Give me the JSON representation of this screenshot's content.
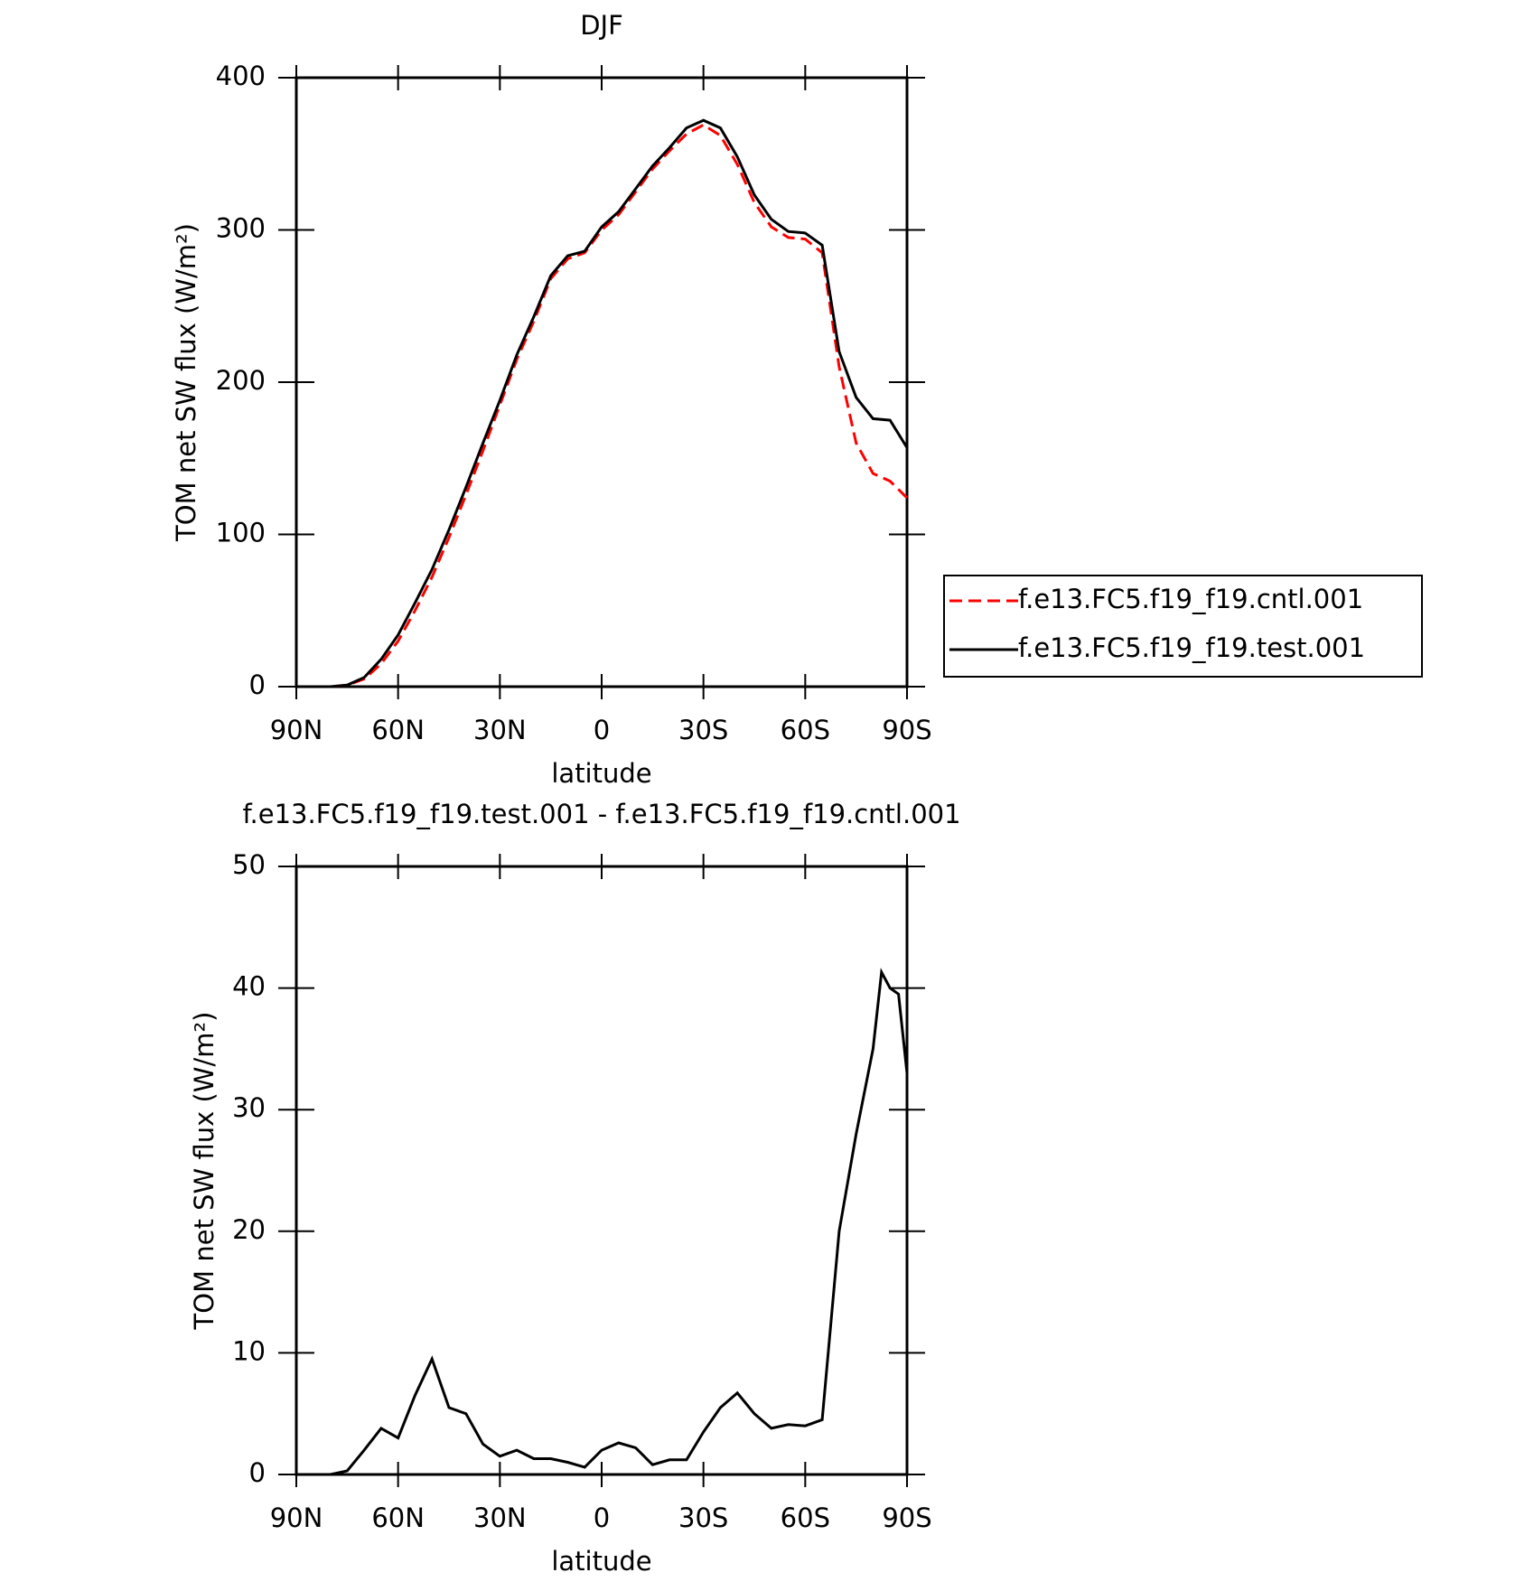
{
  "chart_data": [
    {
      "type": "line",
      "title": "DJF",
      "xlabel": "latitude",
      "ylabel": "TOM net SW flux (W/m²)",
      "x": [
        90,
        85,
        80,
        75,
        70,
        65,
        60,
        55,
        50,
        45,
        40,
        35,
        30,
        25,
        20,
        15,
        10,
        5,
        0,
        -5,
        -10,
        -15,
        -20,
        -25,
        -30,
        -35,
        -40,
        -45,
        -50,
        -55,
        -60,
        -65,
        -70,
        -75,
        -80,
        -85,
        -90
      ],
      "xlim": [
        90,
        -90
      ],
      "xticks": [
        {
          "value": 90,
          "label": "90N"
        },
        {
          "value": 60,
          "label": "60N"
        },
        {
          "value": 30,
          "label": "30N"
        },
        0,
        {
          "value": -30,
          "label": "30S"
        },
        {
          "value": -60,
          "label": "60S"
        },
        {
          "value": -90,
          "label": "90S"
        }
      ],
      "ylim": [
        0,
        400
      ],
      "yticks": [
        0,
        100,
        200,
        300,
        400
      ],
      "series": [
        {
          "name": "f.e13.FC5.f19_f19.cntl.001",
          "color": "#ff0000",
          "dash": true,
          "values": [
            0,
            0,
            0,
            1,
            5,
            15,
            30,
            50,
            72,
            98,
            126,
            155,
            185,
            215,
            240,
            268,
            281,
            285,
            300,
            310,
            325,
            340,
            352,
            363,
            369,
            362,
            343,
            318,
            302,
            295,
            294,
            285,
            210,
            160,
            140,
            135,
            124
          ]
        },
        {
          "name": "f.e13.FC5.f19_f19.test.001",
          "color": "#000000",
          "dash": false,
          "values": [
            0,
            0,
            0,
            1,
            6,
            18,
            34,
            55,
            77,
            103,
            131,
            160,
            188,
            218,
            243,
            270,
            283,
            286,
            302,
            312,
            327,
            342,
            354,
            367,
            372,
            367,
            348,
            323,
            307,
            299,
            298,
            290,
            220,
            190,
            176,
            175,
            157
          ]
        }
      ]
    },
    {
      "type": "line",
      "title": "f.e13.FC5.f19_f19.test.001 - f.e13.FC5.f19_f19.cntl.001",
      "xlabel": "latitude",
      "ylabel": "TOM net SW flux (W/m²)",
      "x": [
        90,
        85,
        80,
        75,
        70,
        65,
        60,
        55,
        50,
        45,
        40,
        35,
        30,
        25,
        20,
        15,
        10,
        5,
        0,
        -5,
        -10,
        -15,
        -20,
        -25,
        -30,
        -35,
        -40,
        -45,
        -50,
        -55,
        -60,
        -65,
        -70,
        -75,
        -80,
        -82.5,
        -85,
        -87.5,
        -90
      ],
      "xlim": [
        90,
        -90
      ],
      "xticks": [
        {
          "value": 90,
          "label": "90N"
        },
        {
          "value": 60,
          "label": "60N"
        },
        {
          "value": 30,
          "label": "30N"
        },
        0,
        {
          "value": -30,
          "label": "30S"
        },
        {
          "value": -60,
          "label": "60S"
        },
        {
          "value": -90,
          "label": "90S"
        }
      ],
      "ylim": [
        0,
        50
      ],
      "yticks": [
        0,
        10,
        20,
        30,
        40,
        50
      ],
      "series": [
        {
          "name": null,
          "color": "#000000",
          "dash": false,
          "values": [
            0,
            0,
            0,
            0.3,
            2,
            3.8,
            3,
            6.5,
            9.5,
            5.5,
            5,
            2.5,
            1.5,
            2,
            1.3,
            1.3,
            1,
            0.6,
            2,
            2.6,
            2.2,
            0.8,
            1.2,
            1.2,
            3.5,
            5.5,
            6.7,
            5,
            3.8,
            4.1,
            4,
            4.5,
            20,
            28,
            35,
            41.3,
            40,
            39.5,
            33
          ]
        }
      ]
    }
  ]
}
